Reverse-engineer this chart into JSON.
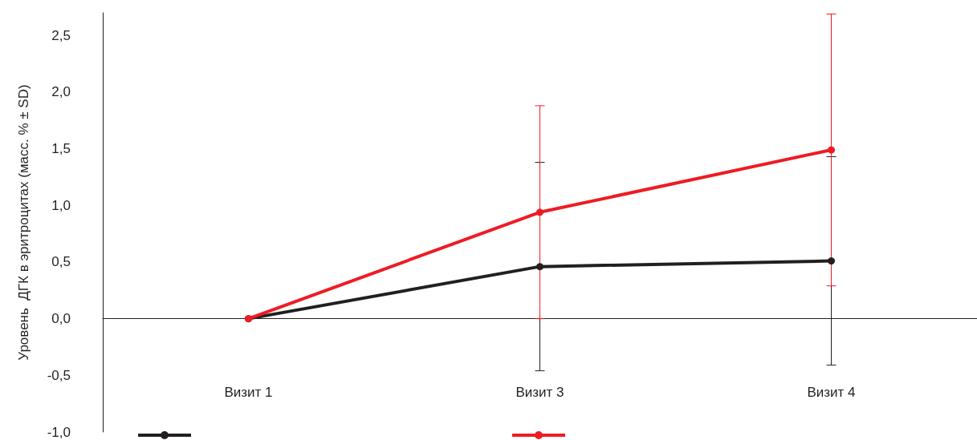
{
  "chart_data": {
    "type": "line",
    "ylabel": "Уровень  ДГК в эритроцитах (масс. % ± SD)",
    "categories": [
      "Визит 1",
      "Визит 3",
      "Визит 4"
    ],
    "series": [
      {
        "color": "#231f20",
        "values": [
          0,
          0.46,
          0.51
        ],
        "errors": [
          null,
          0.92,
          0.92
        ]
      },
      {
        "color": "#ed1c24",
        "values": [
          0,
          0.94,
          1.49
        ],
        "errors": [
          null,
          0.94,
          1.2
        ]
      }
    ],
    "ylim": [
      -1,
      2.7
    ],
    "yticks": [
      {
        "value": -1,
        "label": "-1,0"
      },
      {
        "value": -0.5,
        "label": "-0,5"
      },
      {
        "value": 0,
        "label": "0,0"
      },
      {
        "value": 0.5,
        "label": "0,5"
      },
      {
        "value": 1,
        "label": "1,0"
      },
      {
        "value": 1.5,
        "label": "1,5"
      },
      {
        "value": 2,
        "label": "2,0"
      },
      {
        "value": 2.5,
        "label": "2,5"
      }
    ],
    "marker": "circle",
    "line_style": "solid"
  }
}
